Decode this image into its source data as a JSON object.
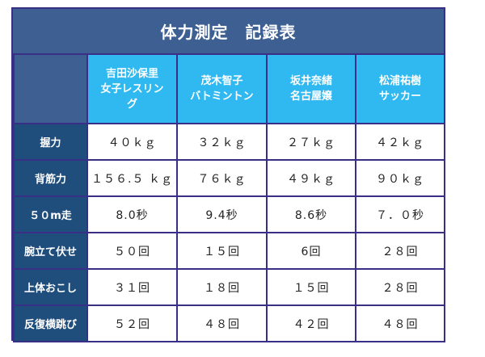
{
  "title": "体力測定　記録表",
  "athletes": [
    {
      "name": "吉田沙保里",
      "sport_lines": [
        "女子レスリン",
        "グ"
      ]
    },
    {
      "name": "茂木智子",
      "sport_lines": [
        "バトミントン"
      ]
    },
    {
      "name": "坂井奈緒",
      "sport_lines": [
        "名古屋嬢"
      ]
    },
    {
      "name": "松浦祐樹",
      "sport_lines": [
        "サッカー"
      ]
    }
  ],
  "rows": [
    {
      "label": "握力",
      "values": [
        "４０ｋｇ",
        "３２ｋｇ",
        "２７ｋｇ",
        "４２ｋｇ"
      ]
    },
    {
      "label": "背筋力",
      "values": [
        "１５６.５ ｋｇ",
        "７６ｋｇ",
        "４９ｋｇ",
        "９０ｋｇ"
      ]
    },
    {
      "label": "５０m走",
      "values": [
        "8.0秒",
        "9.4秒",
        "8.6秒",
        "７．０秒"
      ]
    },
    {
      "label": "腕立て伏せ",
      "values": [
        "５０回",
        "１５回",
        "6回",
        "２８回"
      ]
    },
    {
      "label": "上体おこし",
      "values": [
        "３１回",
        "１８回",
        "１５回",
        "２８回"
      ]
    },
    {
      "label": "反復横跳び",
      "values": [
        "５２回",
        "４８回",
        "４２回",
        "４８回"
      ]
    }
  ]
}
